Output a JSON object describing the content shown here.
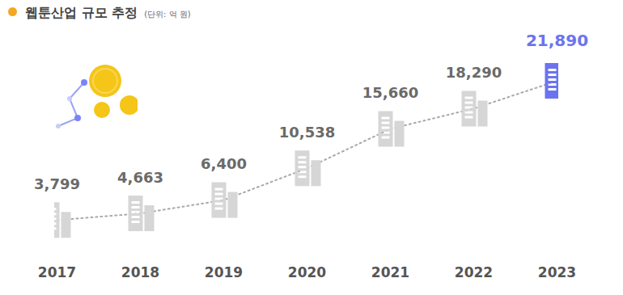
{
  "chart_data": {
    "type": "line",
    "title": "웹툰산업 규모 추정",
    "subtitle": "(단위: 억 원)",
    "categories": [
      "2017",
      "2018",
      "2019",
      "2020",
      "2021",
      "2022",
      "2023"
    ],
    "values": [
      3799,
      4663,
      6400,
      10538,
      15660,
      18290,
      21890
    ],
    "value_labels": [
      "3,799",
      "4,663",
      "6,400",
      "10,538",
      "15,660",
      "18,290",
      "21,890"
    ],
    "colors": [
      "#d6d6d6",
      "#d6d6d6",
      "#d6d6d6",
      "#d6d6d6",
      "#d6d6d6",
      "#d6d6d6",
      "#6b74f0"
    ],
    "marker": "building",
    "line_style": "dotted",
    "data_labels": true,
    "tick_labels": "x",
    "ylim": [
      0,
      25000
    ]
  }
}
